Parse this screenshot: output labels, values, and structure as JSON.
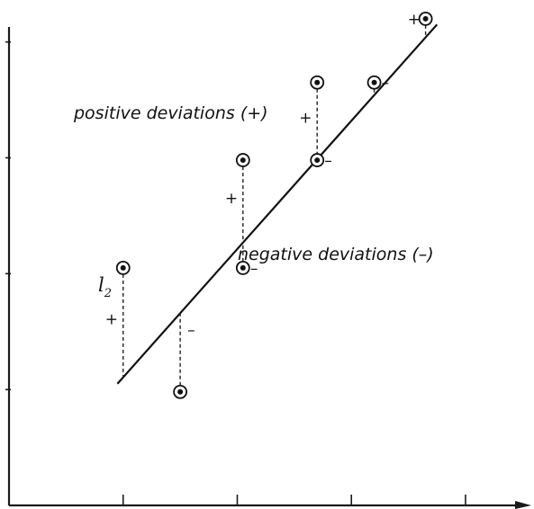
{
  "chart_data": {
    "type": "scatter",
    "title": "",
    "xlabel": "",
    "ylabel": "",
    "xlim": [
      0,
      4.6
    ],
    "ylim": [
      0,
      4.3
    ],
    "x_ticks": [
      1,
      2,
      3,
      4
    ],
    "y_ticks": [
      1,
      2,
      3,
      4
    ],
    "tick_labels_shown": false,
    "grid": false,
    "points": [
      {
        "x": 1.0,
        "y": 2.05,
        "deviation": "+"
      },
      {
        "x": 1.5,
        "y": 0.98,
        "deviation": "-"
      },
      {
        "x": 2.05,
        "y": 2.05,
        "deviation": "-"
      },
      {
        "x": 2.05,
        "y": 2.98,
        "deviation": "+"
      },
      {
        "x": 2.7,
        "y": 2.98,
        "deviation": "-"
      },
      {
        "x": 2.7,
        "y": 3.65,
        "deviation": "+"
      },
      {
        "x": 3.2,
        "y": 3.65,
        "deviation": "-"
      },
      {
        "x": 3.65,
        "y": 4.2,
        "deviation": "+"
      }
    ],
    "fit_line": {
      "label": "l",
      "label_subscript": "2",
      "x": [
        0.95,
        3.75
      ],
      "y": [
        1.05,
        4.15
      ]
    },
    "annotations": {
      "positive": "positive deviations (+)",
      "negative": "negative deviations (–)"
    },
    "signs": {
      "positive": "+",
      "negative": "–"
    }
  }
}
